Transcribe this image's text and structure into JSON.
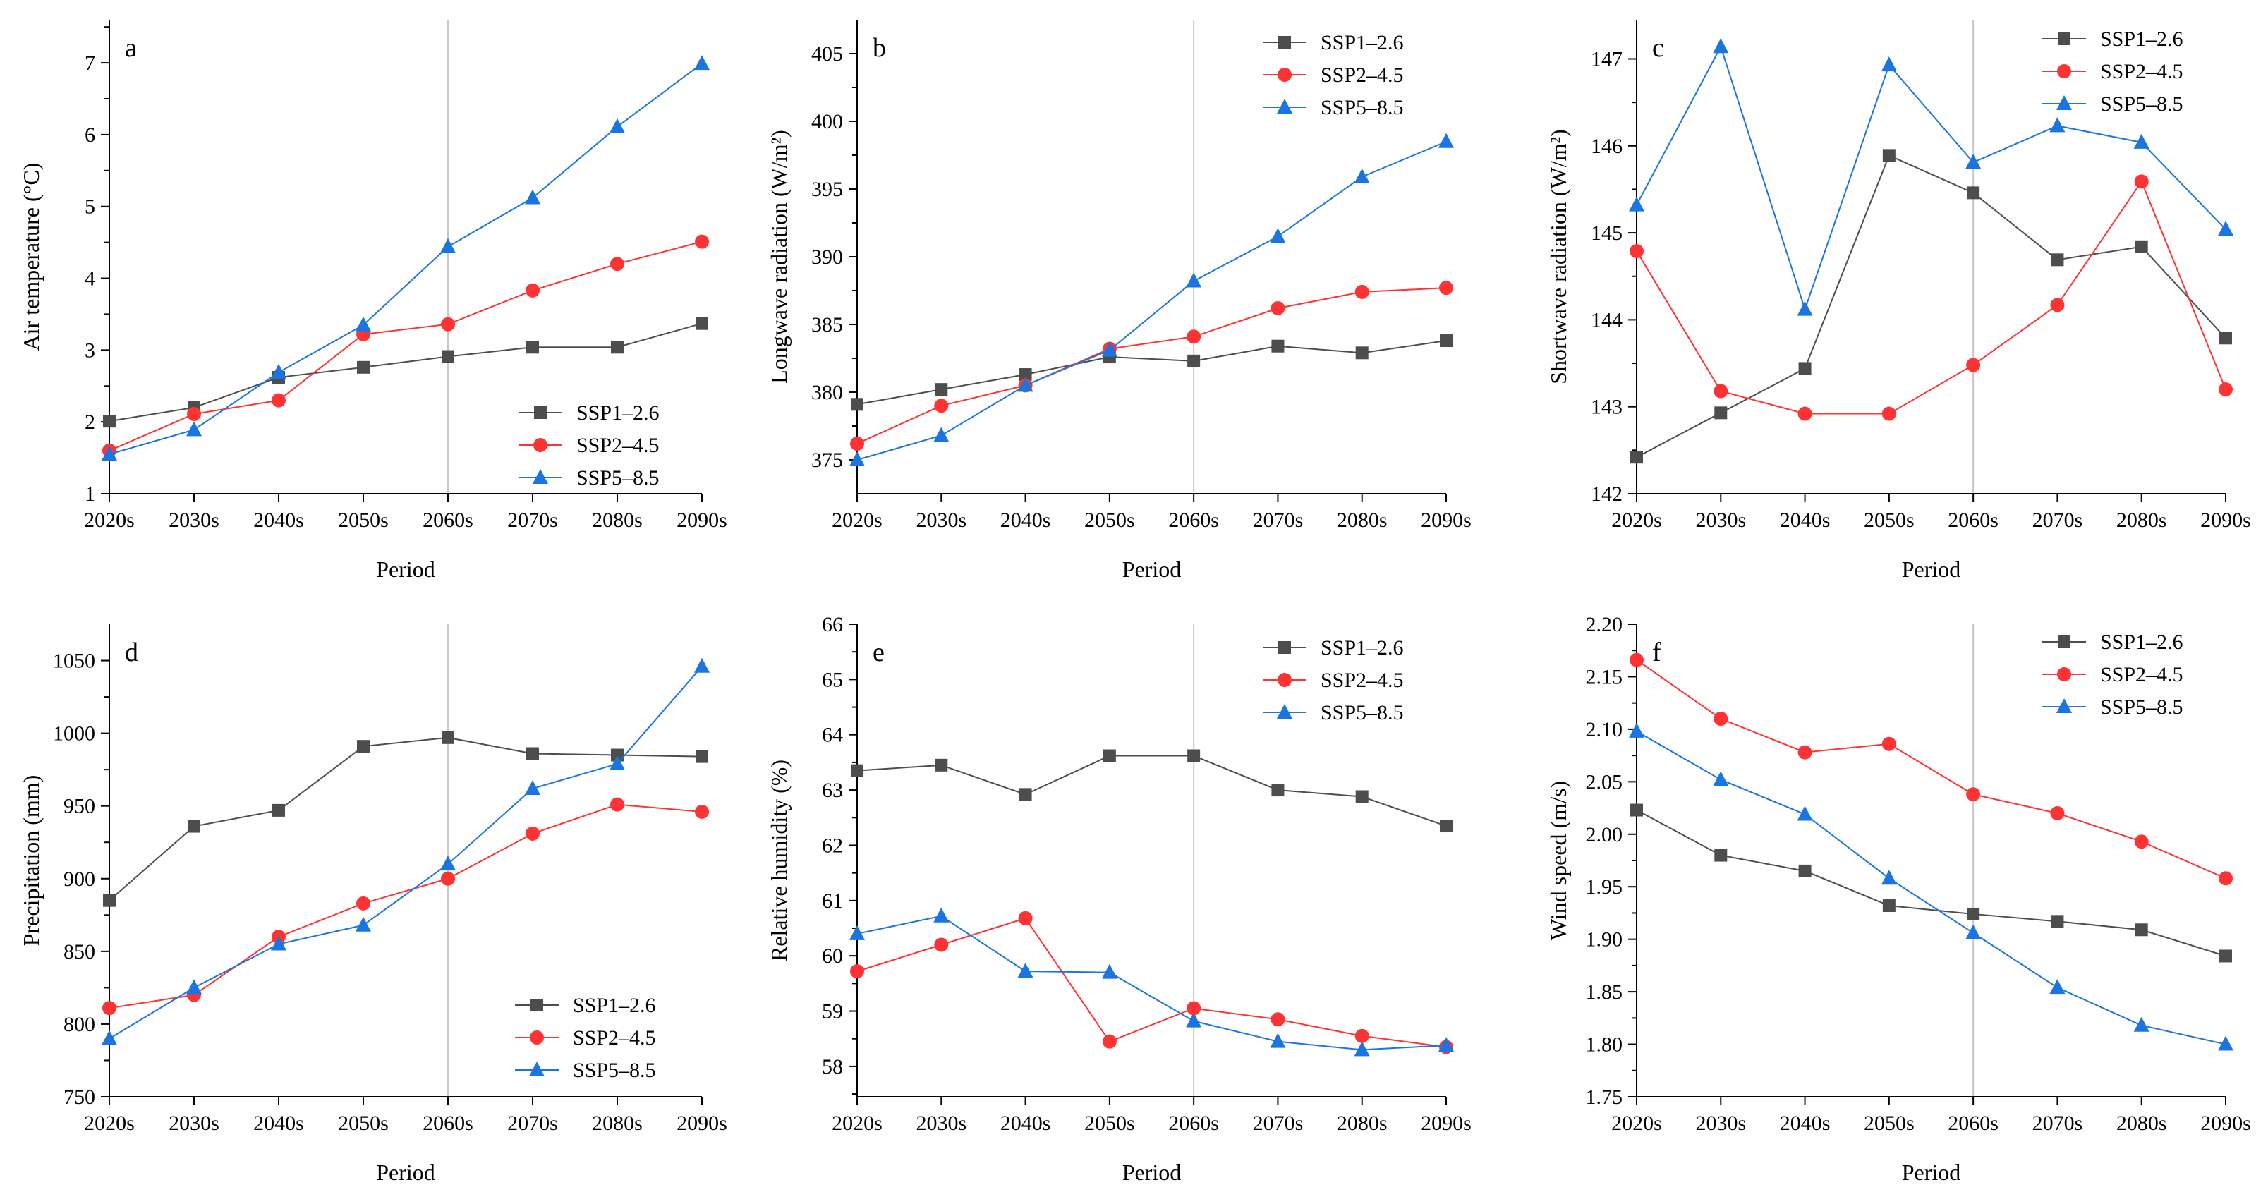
{
  "legend_names": [
    "SSP1–2.6",
    "SSP2–4.5",
    "SSP5–8.5"
  ],
  "series_colors": [
    "#4d4d4d",
    "#ff3333",
    "#1a75e0"
  ],
  "series_markers": [
    "square",
    "circle",
    "triangle"
  ],
  "reference_line_category": "2060s",
  "chart_data": [
    {
      "type": "line",
      "panel": "a",
      "xlabel": "Period",
      "ylabel": "Air temperature (°C)",
      "categories": [
        "2020s",
        "2030s",
        "2040s",
        "2050s",
        "2060s",
        "2070s",
        "2080s",
        "2090s"
      ],
      "ylim": [
        1,
        7.6
      ],
      "yticks": [
        1,
        2,
        3,
        4,
        5,
        6,
        7
      ],
      "ytick_labels": [
        "1",
        "2",
        "3",
        "4",
        "5",
        "6",
        "7"
      ],
      "legend_position": "bottom-right",
      "series": [
        {
          "name": "SSP1–2.6",
          "values": [
            2.01,
            2.2,
            2.62,
            2.76,
            2.91,
            3.04,
            3.04,
            3.37
          ]
        },
        {
          "name": "SSP2–4.5",
          "values": [
            1.6,
            2.11,
            2.3,
            3.22,
            3.36,
            3.83,
            4.2,
            4.51
          ]
        },
        {
          "name": "SSP5–8.5",
          "values": [
            1.55,
            1.89,
            2.69,
            3.35,
            4.44,
            5.12,
            6.11,
            6.99
          ]
        }
      ]
    },
    {
      "type": "line",
      "panel": "b",
      "xlabel": "Period",
      "ylabel": "Longwave radiation (W/m²)",
      "categories": [
        "2020s",
        "2030s",
        "2040s",
        "2050s",
        "2060s",
        "2070s",
        "2080s",
        "2090s"
      ],
      "ylim": [
        372.5,
        407.5
      ],
      "yticks": [
        375,
        380,
        385,
        390,
        395,
        400,
        405
      ],
      "ytick_labels": [
        "375",
        "380",
        "385",
        "390",
        "395",
        "400",
        "405"
      ],
      "legend_position": "top-right",
      "series": [
        {
          "name": "SSP1–2.6",
          "values": [
            379.1,
            380.2,
            381.3,
            382.6,
            382.3,
            383.4,
            382.9,
            383.8
          ]
        },
        {
          "name": "SSP2–4.5",
          "values": [
            376.2,
            379.0,
            380.5,
            383.2,
            384.1,
            386.2,
            387.4,
            387.7
          ]
        },
        {
          "name": "SSP5–8.5",
          "values": [
            375.0,
            376.8,
            380.5,
            383.1,
            388.2,
            391.5,
            395.9,
            398.5
          ]
        }
      ]
    },
    {
      "type": "line",
      "panel": "c",
      "xlabel": "Period",
      "ylabel": "Shortwave radiation (W/m²)",
      "categories": [
        "2020s",
        "2030s",
        "2040s",
        "2050s",
        "2060s",
        "2070s",
        "2080s",
        "2090s"
      ],
      "ylim": [
        142,
        147.45
      ],
      "yticks": [
        142,
        143,
        144,
        145,
        146,
        147
      ],
      "ytick_labels": [
        "142",
        "143",
        "144",
        "145",
        "146",
        "147"
      ],
      "legend_position": "top-right",
      "series": [
        {
          "name": "SSP1–2.6",
          "values": [
            142.42,
            142.93,
            143.44,
            145.89,
            145.46,
            144.69,
            144.84,
            143.79
          ]
        },
        {
          "name": "SSP2–4.5",
          "values": [
            144.79,
            143.18,
            142.92,
            142.92,
            143.48,
            144.17,
            145.59,
            143.2
          ]
        },
        {
          "name": "SSP5–8.5",
          "values": [
            145.32,
            147.14,
            144.12,
            146.93,
            145.81,
            146.23,
            146.04,
            145.04
          ]
        }
      ]
    },
    {
      "type": "line",
      "panel": "d",
      "xlabel": "Period",
      "ylabel": "Precipitation (mm)",
      "categories": [
        "2020s",
        "2030s",
        "2040s",
        "2050s",
        "2060s",
        "2070s",
        "2080s",
        "2090s"
      ],
      "ylim": [
        750,
        1075
      ],
      "yticks": [
        750,
        800,
        850,
        900,
        950,
        1000,
        1050
      ],
      "ytick_labels": [
        "750",
        "800",
        "850",
        "900",
        "950",
        "1000",
        "1050"
      ],
      "legend_position": "bottom-right",
      "series": [
        {
          "name": "SSP1–2.6",
          "values": [
            885,
            936,
            947,
            991,
            997,
            986,
            985,
            984
          ]
        },
        {
          "name": "SSP2–4.5",
          "values": [
            811,
            820,
            860,
            883,
            900,
            931,
            951,
            946
          ]
        },
        {
          "name": "SSP5–8.5",
          "values": [
            790,
            825,
            855,
            868,
            910,
            962,
            979,
            1046
          ]
        }
      ]
    },
    {
      "type": "line",
      "panel": "e",
      "xlabel": "Period",
      "ylabel": "Relative humidity (%)",
      "categories": [
        "2020s",
        "2030s",
        "2040s",
        "2050s",
        "2060s",
        "2070s",
        "2080s",
        "2090s"
      ],
      "ylim": [
        57.45,
        66
      ],
      "yticks": [
        58,
        59,
        60,
        61,
        62,
        63,
        64,
        65,
        66
      ],
      "ytick_labels": [
        "58",
        "59",
        "60",
        "61",
        "62",
        "63",
        "64",
        "65",
        "66"
      ],
      "legend_position": "top-right",
      "series": [
        {
          "name": "SSP1–2.6",
          "values": [
            63.35,
            63.45,
            62.92,
            63.62,
            63.62,
            63.0,
            62.88,
            62.35
          ]
        },
        {
          "name": "SSP2–4.5",
          "values": [
            59.72,
            60.2,
            60.68,
            58.45,
            59.05,
            58.85,
            58.55,
            58.35
          ]
        },
        {
          "name": "SSP5–8.5",
          "values": [
            60.4,
            60.72,
            59.72,
            59.7,
            58.82,
            58.45,
            58.3,
            58.38
          ]
        }
      ]
    },
    {
      "type": "line",
      "panel": "f",
      "xlabel": "Period",
      "ylabel": "Wind speed (m/s)",
      "categories": [
        "2020s",
        "2030s",
        "2040s",
        "2050s",
        "2060s",
        "2070s",
        "2080s",
        "2090s"
      ],
      "ylim": [
        1.75,
        2.2
      ],
      "yticks": [
        1.75,
        1.8,
        1.85,
        1.9,
        1.95,
        2.0,
        2.05,
        2.1,
        2.15,
        2.2
      ],
      "ytick_labels": [
        "1.75",
        "1.80",
        "1.85",
        "1.90",
        "1.95",
        "2.00",
        "2.05",
        "2.10",
        "2.15",
        "2.20"
      ],
      "legend_position": "top-right",
      "series": [
        {
          "name": "SSP1–2.6",
          "values": [
            2.023,
            1.98,
            1.965,
            1.932,
            1.924,
            1.917,
            1.909,
            1.884
          ]
        },
        {
          "name": "SSP2–4.5",
          "values": [
            2.166,
            2.11,
            2.078,
            2.086,
            2.038,
            2.02,
            1.993,
            1.958
          ]
        },
        {
          "name": "SSP5–8.5",
          "values": [
            2.098,
            2.052,
            2.019,
            1.958,
            1.906,
            1.854,
            1.818,
            1.8
          ]
        }
      ]
    }
  ]
}
